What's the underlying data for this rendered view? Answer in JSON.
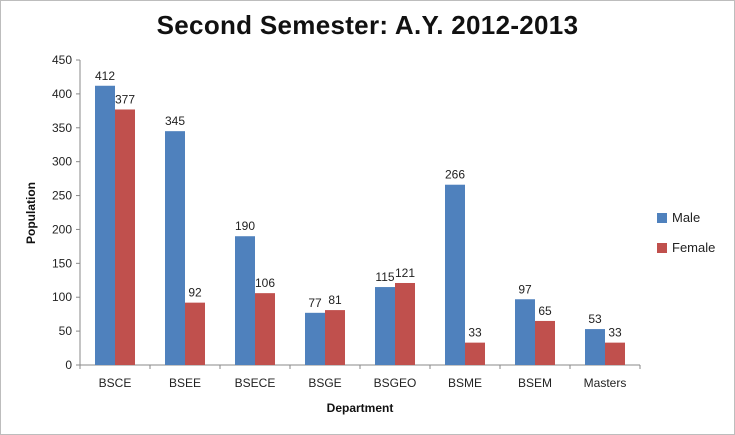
{
  "chart_data": {
    "type": "bar",
    "title": "Second Semester: A.Y. 2012-2013",
    "xlabel": "Department",
    "ylabel": "Population",
    "categories": [
      "BSCE",
      "BSEE",
      "BSECE",
      "BSGE",
      "BSGEO",
      "BSME",
      "BSEM",
      "Masters"
    ],
    "series": [
      {
        "name": "Male",
        "values": [
          412,
          345,
          190,
          77,
          115,
          266,
          97,
          53
        ]
      },
      {
        "name": "Female",
        "values": [
          377,
          92,
          106,
          81,
          121,
          33,
          65,
          33
        ]
      }
    ],
    "ylim": [
      0,
      450
    ],
    "yticks": [
      0,
      50,
      100,
      150,
      200,
      250,
      300,
      350,
      400,
      450
    ],
    "grid": false,
    "legend": "right",
    "colors": {
      "Male": "#4f81bd",
      "Female": "#c0504d"
    }
  }
}
